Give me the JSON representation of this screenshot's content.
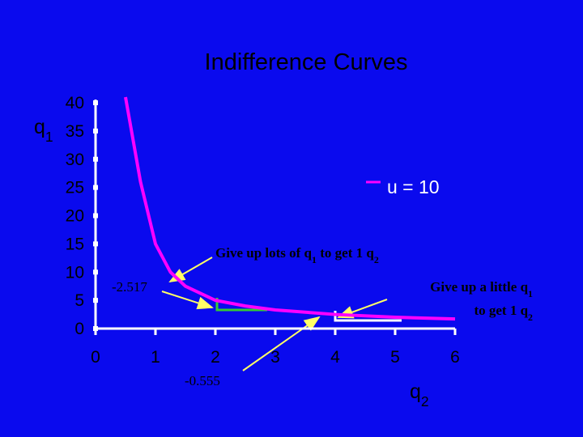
{
  "chart_data": {
    "type": "line",
    "title": "Indifference Curves",
    "y_label": [
      "q",
      "1"
    ],
    "x_label": [
      "q",
      "2"
    ],
    "x": [
      0.5,
      0.75,
      1,
      1.25,
      1.5,
      2,
      2.5,
      3,
      4,
      5,
      6
    ],
    "series": [
      {
        "name": "u = 10",
        "color": "#ff00ff",
        "values": [
          41,
          26,
          15,
          10,
          7.5,
          5,
          4,
          3.3,
          2.5,
          2,
          1.7
        ]
      }
    ],
    "xlim": [
      0,
      6
    ],
    "ylim": [
      0,
      40
    ],
    "xticks": [
      0,
      1,
      2,
      3,
      4,
      5,
      6
    ],
    "yticks": [
      0,
      5,
      10,
      15,
      20,
      25,
      30,
      35,
      40
    ],
    "annotations": [
      {
        "parts": [
          "Give up lots of q",
          "1",
          " to get 1 q",
          "2"
        ]
      },
      {
        "parts": [
          "-2.517"
        ]
      },
      {
        "parts": [
          "Give up a little q",
          "1"
        ]
      },
      {
        "parts": [
          "to get 1 q",
          "2"
        ]
      },
      {
        "parts": [
          "-0.555"
        ]
      }
    ]
  }
}
